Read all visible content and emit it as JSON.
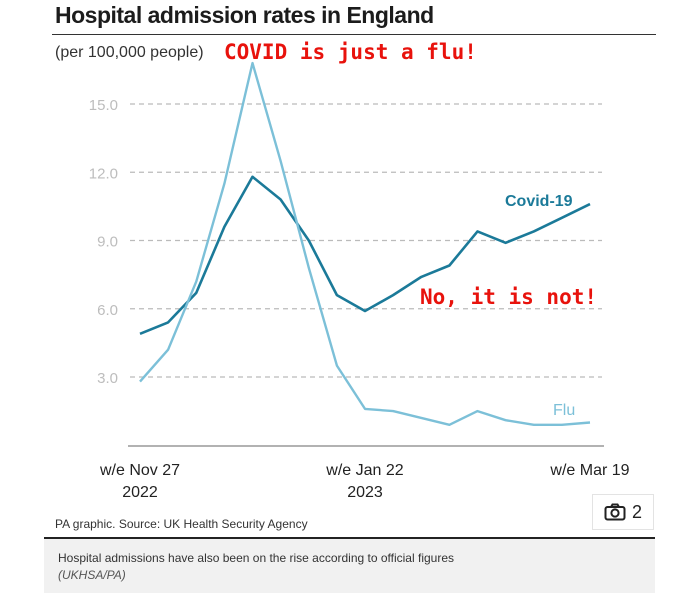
{
  "header": {
    "title": "Hospital admission rates in England",
    "unit": "(per 100,000 people)"
  },
  "annotations": {
    "top": "COVID is just a flu!",
    "middle": "No, it is not!"
  },
  "footer": {
    "source": "PA graphic. Source: UK Health Security Agency",
    "photo_count": "2",
    "caption": "Hospital admissions have also been on the rise according to official figures",
    "credit": "(UKHSA/PA)"
  },
  "colors": {
    "covid": "#1b7a99",
    "flu": "#7cc0d8",
    "annotation": "#e8120c",
    "grid": "#bbbbbb"
  },
  "chart_data": {
    "type": "line",
    "title": "Hospital admission rates in England",
    "ylabel": "(per 100,000 people)",
    "ylim": [
      0,
      16.5
    ],
    "yticks": [
      "3.0",
      "6.0",
      "9.0",
      "12.0",
      "15.0"
    ],
    "x_tick_labels": [
      {
        "label": "w/e Nov 27",
        "year": "2022",
        "index": 0
      },
      {
        "label": "w/e Jan 22",
        "year": "2023",
        "index": 8
      },
      {
        "label": "w/e Mar 19",
        "year": "",
        "index": 16
      }
    ],
    "grid": "horizontal dashed",
    "series": [
      {
        "name": "Covid-19",
        "values": [
          4.9,
          5.4,
          6.7,
          9.6,
          11.8,
          10.8,
          9.0,
          6.6,
          5.9,
          6.6,
          7.4,
          7.9,
          9.4,
          8.9,
          9.4,
          10.0,
          10.6
        ]
      },
      {
        "name": "Flu",
        "values": [
          2.8,
          4.2,
          7.2,
          11.5,
          16.8,
          12.5,
          7.8,
          3.5,
          1.6,
          1.5,
          1.2,
          0.9,
          1.5,
          1.1,
          0.9,
          0.9,
          1.0
        ]
      }
    ]
  }
}
